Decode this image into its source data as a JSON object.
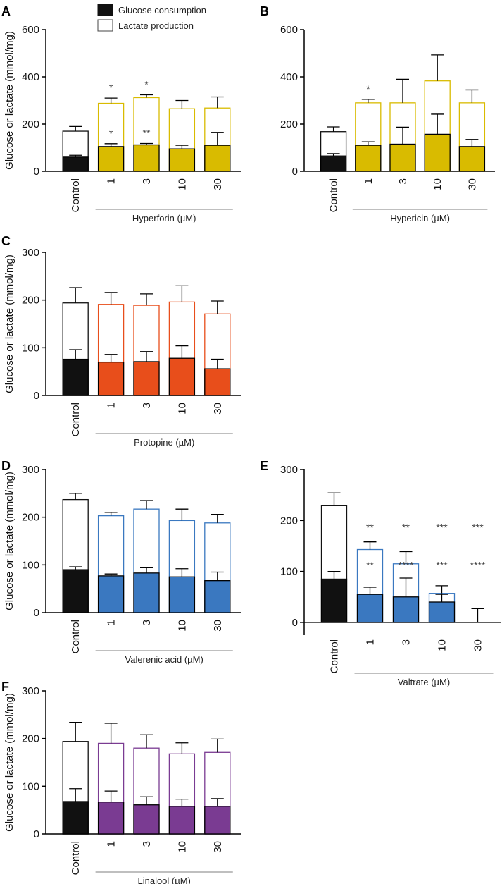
{
  "legend": {
    "glucose_label": "Glucose consumption",
    "lactate_label": "Lactate production",
    "glucose_color": "#111111",
    "lactate_color": "#ffffff"
  },
  "ylabel": "Glucose or lactate (mmol/mg)",
  "chart_data": [
    {
      "type": "bar",
      "panel": "A",
      "categories": [
        "Control",
        "1",
        "3",
        "10",
        "30"
      ],
      "group_label": "Hyperforin (µM)",
      "ylim": [
        0,
        600
      ],
      "yticks": [
        0,
        200,
        400,
        600
      ],
      "color": "#d9bb00",
      "series": [
        {
          "name": "Glucose consumption",
          "values": [
            60,
            105,
            112,
            95,
            110
          ],
          "errors": [
            8,
            12,
            6,
            15,
            55
          ]
        },
        {
          "name": "Lactate production",
          "values": [
            170,
            288,
            312,
            265,
            268
          ],
          "errors": [
            20,
            22,
            12,
            35,
            47
          ]
        }
      ],
      "glucose_marks": [
        "",
        "*",
        "**",
        "",
        ""
      ],
      "lactate_marks": [
        "",
        "*",
        "*",
        "",
        ""
      ]
    },
    {
      "type": "bar",
      "panel": "B",
      "categories": [
        "Control",
        "1",
        "3",
        "10",
        "30"
      ],
      "group_label": "Hypericin (µM)",
      "ylim": [
        0,
        600
      ],
      "yticks": [
        0,
        200,
        400,
        600
      ],
      "color": "#d9bb00",
      "series": [
        {
          "name": "Glucose consumption",
          "values": [
            65,
            110,
            115,
            157,
            105
          ],
          "errors": [
            10,
            15,
            72,
            85,
            30
          ]
        },
        {
          "name": "Lactate production",
          "values": [
            168,
            290,
            290,
            383,
            290
          ],
          "errors": [
            20,
            15,
            100,
            110,
            55
          ]
        }
      ],
      "glucose_marks": [
        "",
        "",
        "",
        "",
        ""
      ],
      "lactate_marks": [
        "",
        "*",
        "",
        "",
        ""
      ]
    },
    {
      "type": "bar",
      "panel": "C",
      "categories": [
        "Control",
        "1",
        "3",
        "10",
        "30"
      ],
      "group_label": "Protopine (µM)",
      "ylim": [
        0,
        300
      ],
      "yticks": [
        0,
        100,
        200,
        300
      ],
      "color": "#e84e1b",
      "series": [
        {
          "name": "Glucose consumption",
          "values": [
            76,
            70,
            71,
            78,
            56
          ],
          "errors": [
            20,
            16,
            21,
            26,
            20
          ]
        },
        {
          "name": "Lactate production",
          "values": [
            194,
            191,
            189,
            196,
            171
          ],
          "errors": [
            32,
            25,
            24,
            34,
            27
          ]
        }
      ],
      "glucose_marks": [
        "",
        "",
        "",
        "",
        ""
      ],
      "lactate_marks": [
        "",
        "",
        "",
        "",
        ""
      ]
    },
    {
      "type": "bar",
      "panel": "D",
      "categories": [
        "Control",
        "1",
        "3",
        "10",
        "30"
      ],
      "group_label": "Valerenic acid (µM)",
      "ylim": [
        0,
        300
      ],
      "yticks": [
        0,
        100,
        200,
        300
      ],
      "color": "#3a78c0",
      "series": [
        {
          "name": "Glucose consumption",
          "values": [
            90,
            77,
            83,
            75,
            67
          ],
          "errors": [
            6,
            4,
            11,
            17,
            18
          ]
        },
        {
          "name": "Lactate production",
          "values": [
            237,
            203,
            217,
            193,
            188
          ],
          "errors": [
            13,
            7,
            18,
            24,
            18
          ]
        }
      ],
      "glucose_marks": [
        "",
        "",
        "",
        "",
        ""
      ],
      "lactate_marks": [
        "",
        "",
        "",
        "",
        ""
      ]
    },
    {
      "type": "bar",
      "panel": "E",
      "categories": [
        "Control",
        "1",
        "3",
        "10",
        "30"
      ],
      "group_label": "Valtrate (µM)",
      "ylim": [
        -25,
        300
      ],
      "yticks": [
        0,
        100,
        200,
        300
      ],
      "color": "#3a78c0",
      "series": [
        {
          "name": "Glucose consumption",
          "values": [
            85,
            55,
            50,
            40,
            0
          ],
          "errors": [
            15,
            14,
            37,
            15,
            0
          ]
        },
        {
          "name": "Lactate production",
          "values": [
            229,
            143,
            115,
            57,
            0
          ],
          "errors": [
            25,
            15,
            24,
            15,
            27
          ]
        }
      ],
      "glucose_marks": [
        "",
        "**",
        "****",
        "***",
        "****"
      ],
      "lactate_marks": [
        "",
        "**",
        "**",
        "***",
        "***"
      ]
    },
    {
      "type": "bar",
      "panel": "F",
      "categories": [
        "Control",
        "1",
        "3",
        "10",
        "30"
      ],
      "group_label": "Linalool (µM)",
      "ylim": [
        0,
        300
      ],
      "yticks": [
        0,
        100,
        200,
        300
      ],
      "color": "#7a3b92",
      "series": [
        {
          "name": "Glucose consumption",
          "values": [
            68,
            67,
            61,
            58,
            58
          ],
          "errors": [
            27,
            23,
            17,
            15,
            16
          ]
        },
        {
          "name": "Lactate production",
          "values": [
            194,
            190,
            180,
            168,
            171
          ],
          "errors": [
            40,
            42,
            28,
            23,
            28
          ]
        }
      ],
      "glucose_marks": [
        "",
        "",
        "",
        "",
        ""
      ],
      "lactate_marks": [
        "",
        "",
        "",
        "",
        ""
      ]
    }
  ]
}
